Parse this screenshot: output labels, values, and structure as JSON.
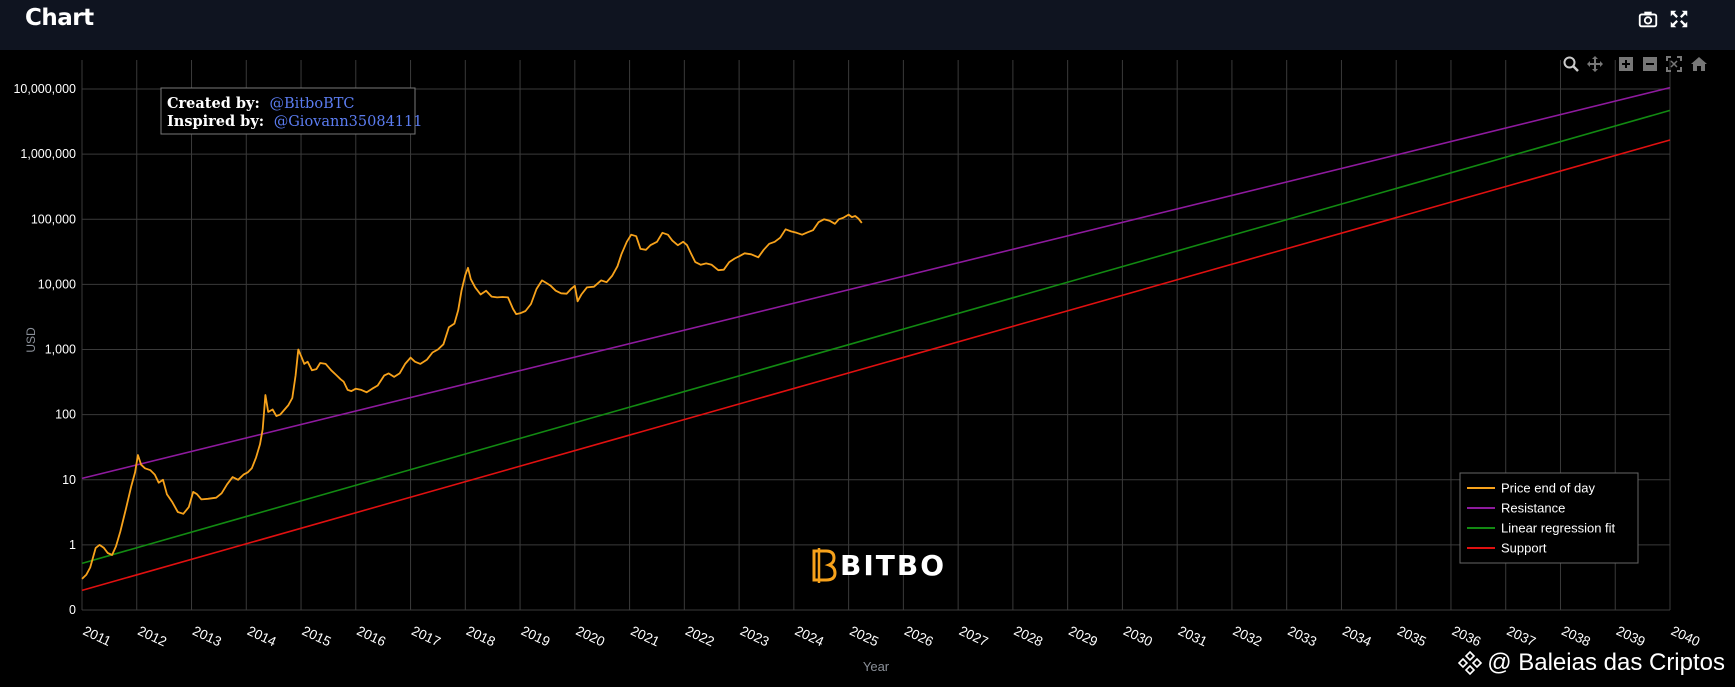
{
  "header": {
    "title": "Chart",
    "camera_icon": "camera-icon",
    "fullscreen_icon": "fullscreen-icon"
  },
  "modebar": [
    "zoom-icon",
    "pan-icon",
    "zoom-in-icon",
    "zoom-out-icon",
    "autoscale-icon",
    "reset-axes-icon"
  ],
  "credits": {
    "created_label": "Created by:",
    "created_value": "@BitboBTC",
    "inspired_label": "Inspired by:",
    "inspired_value": "@Giovann35084111"
  },
  "logo_text": "BITBO",
  "watermark": "@ Baleias das Criptos",
  "colors": {
    "price": "#f7a21b",
    "resistance": "#8e1a9e",
    "regression": "#128a12",
    "support": "#e01010",
    "grid": "#3a3a3a",
    "link": "#5b7cf0"
  },
  "chart_data": {
    "type": "line",
    "xlabel": "Year",
    "ylabel": "USD",
    "yscale": "log",
    "xlim": [
      2011.0,
      2040.0
    ],
    "ylim": [
      0.1,
      10000000
    ],
    "x_ticks": [
      "2011",
      "2012",
      "2013",
      "2014",
      "2015",
      "2016",
      "2017",
      "2018",
      "2019",
      "2020",
      "2021",
      "2022",
      "2023",
      "2024",
      "2025",
      "2026",
      "2027",
      "2028",
      "2029",
      "2030",
      "2031",
      "2032",
      "2033",
      "2034",
      "2035",
      "2036",
      "2037",
      "2038",
      "2039",
      "2040"
    ],
    "y_ticks": [
      {
        "value": 0.1,
        "label": "0"
      },
      {
        "value": 1,
        "label": "1"
      },
      {
        "value": 10,
        "label": "10"
      },
      {
        "value": 100,
        "label": "100"
      },
      {
        "value": 1000,
        "label": "1,000"
      },
      {
        "value": 10000,
        "label": "10,000"
      },
      {
        "value": 100000,
        "label": "100,000"
      },
      {
        "value": 1000000,
        "label": "1,000,000"
      },
      {
        "value": 10000000,
        "label": "10,000,000"
      }
    ],
    "legend_position": "bottom-right",
    "series": [
      {
        "name": "Price end of day",
        "color": "#f7a21b",
        "points": [
          [
            2011.0,
            0.3
          ],
          [
            2011.08,
            0.35
          ],
          [
            2011.15,
            0.45
          ],
          [
            2011.25,
            0.9
          ],
          [
            2011.32,
            1.0
          ],
          [
            2011.4,
            0.9
          ],
          [
            2011.47,
            0.75
          ],
          [
            2011.55,
            0.7
          ],
          [
            2011.62,
            0.95
          ],
          [
            2011.7,
            1.6
          ],
          [
            2011.8,
            3.5
          ],
          [
            2011.9,
            8
          ],
          [
            2011.97,
            13
          ],
          [
            2012.02,
            24
          ],
          [
            2012.08,
            17
          ],
          [
            2012.15,
            15
          ],
          [
            2012.25,
            14
          ],
          [
            2012.33,
            12
          ],
          [
            2012.4,
            9
          ],
          [
            2012.48,
            10
          ],
          [
            2012.55,
            6
          ],
          [
            2012.65,
            4.5
          ],
          [
            2012.75,
            3.2
          ],
          [
            2012.85,
            3.0
          ],
          [
            2012.95,
            3.8
          ],
          [
            2013.03,
            6.5
          ],
          [
            2013.1,
            6.0
          ],
          [
            2013.18,
            5.0
          ],
          [
            2013.3,
            5.1
          ],
          [
            2013.45,
            5.3
          ],
          [
            2013.55,
            6.2
          ],
          [
            2013.65,
            8.5
          ],
          [
            2013.75,
            11
          ],
          [
            2013.85,
            10
          ],
          [
            2013.95,
            12
          ],
          [
            2014.03,
            13
          ],
          [
            2014.1,
            15
          ],
          [
            2014.18,
            22
          ],
          [
            2014.25,
            35
          ],
          [
            2014.3,
            60
          ],
          [
            2014.35,
            200
          ],
          [
            2014.4,
            110
          ],
          [
            2014.48,
            120
          ],
          [
            2014.55,
            95
          ],
          [
            2014.62,
            100
          ],
          [
            2014.7,
            120
          ],
          [
            2014.77,
            140
          ],
          [
            2014.84,
            180
          ],
          [
            2014.9,
            400
          ],
          [
            2014.95,
            1000
          ],
          [
            2015.0,
            800
          ],
          [
            2015.06,
            600
          ],
          [
            2015.12,
            650
          ],
          [
            2015.2,
            480
          ],
          [
            2015.28,
            500
          ],
          [
            2015.35,
            620
          ],
          [
            2015.45,
            600
          ],
          [
            2015.55,
            480
          ],
          [
            2015.65,
            400
          ],
          [
            2015.72,
            350
          ],
          [
            2015.78,
            320
          ],
          [
            2015.85,
            240
          ],
          [
            2015.92,
            230
          ],
          [
            2016.0,
            250
          ],
          [
            2016.1,
            240
          ],
          [
            2016.2,
            220
          ],
          [
            2016.3,
            250
          ],
          [
            2016.4,
            280
          ],
          [
            2016.52,
            400
          ],
          [
            2016.6,
            430
          ],
          [
            2016.7,
            380
          ],
          [
            2016.8,
            430
          ],
          [
            2016.9,
            600
          ],
          [
            2017.0,
            750
          ],
          [
            2017.08,
            650
          ],
          [
            2017.18,
            600
          ],
          [
            2017.3,
            700
          ],
          [
            2017.4,
            900
          ],
          [
            2017.5,
            1000
          ],
          [
            2017.6,
            1200
          ],
          [
            2017.7,
            2200
          ],
          [
            2017.8,
            2500
          ],
          [
            2017.87,
            4000
          ],
          [
            2017.93,
            8000
          ],
          [
            2018.0,
            14000
          ],
          [
            2018.05,
            18000
          ],
          [
            2018.1,
            12000
          ],
          [
            2018.18,
            9000
          ],
          [
            2018.28,
            7000
          ],
          [
            2018.38,
            8000
          ],
          [
            2018.48,
            6500
          ],
          [
            2018.58,
            6300
          ],
          [
            2018.68,
            6400
          ],
          [
            2018.78,
            6300
          ],
          [
            2018.87,
            4200
          ],
          [
            2018.93,
            3500
          ],
          [
            2019.0,
            3600
          ],
          [
            2019.1,
            3900
          ],
          [
            2019.2,
            5000
          ],
          [
            2019.3,
            8500
          ],
          [
            2019.4,
            11500
          ],
          [
            2019.48,
            10500
          ],
          [
            2019.56,
            9500
          ],
          [
            2019.65,
            8000
          ],
          [
            2019.75,
            7300
          ],
          [
            2019.85,
            7200
          ],
          [
            2019.93,
            8500
          ],
          [
            2020.0,
            9500
          ],
          [
            2020.05,
            5500
          ],
          [
            2020.12,
            7000
          ],
          [
            2020.22,
            9000
          ],
          [
            2020.35,
            9200
          ],
          [
            2020.48,
            11500
          ],
          [
            2020.58,
            10800
          ],
          [
            2020.68,
            13500
          ],
          [
            2020.78,
            19000
          ],
          [
            2020.85,
            29000
          ],
          [
            2020.95,
            45000
          ],
          [
            2021.03,
            58000
          ],
          [
            2021.12,
            55000
          ],
          [
            2021.2,
            35000
          ],
          [
            2021.3,
            34000
          ],
          [
            2021.38,
            40000
          ],
          [
            2021.5,
            45000
          ],
          [
            2021.6,
            62000
          ],
          [
            2021.7,
            58000
          ],
          [
            2021.78,
            47000
          ],
          [
            2021.88,
            40000
          ],
          [
            2021.98,
            45000
          ],
          [
            2022.05,
            40000
          ],
          [
            2022.12,
            30000
          ],
          [
            2022.2,
            22000
          ],
          [
            2022.3,
            20000
          ],
          [
            2022.4,
            21000
          ],
          [
            2022.5,
            20000
          ],
          [
            2022.62,
            16500
          ],
          [
            2022.72,
            16800
          ],
          [
            2022.82,
            22000
          ],
          [
            2022.92,
            25000
          ],
          [
            2023.0,
            27000
          ],
          [
            2023.1,
            30000
          ],
          [
            2023.22,
            29000
          ],
          [
            2023.35,
            26000
          ],
          [
            2023.45,
            34000
          ],
          [
            2023.55,
            42000
          ],
          [
            2023.65,
            45000
          ],
          [
            2023.75,
            52000
          ],
          [
            2023.85,
            70000
          ],
          [
            2023.95,
            65000
          ],
          [
            2024.05,
            62000
          ],
          [
            2024.15,
            58000
          ],
          [
            2024.25,
            63000
          ],
          [
            2024.35,
            68000
          ],
          [
            2024.45,
            90000
          ],
          [
            2024.55,
            100000
          ],
          [
            2024.65,
            95000
          ],
          [
            2024.75,
            85000
          ],
          [
            2024.82,
            100000
          ],
          [
            2024.9,
            105000
          ],
          [
            2025.0,
            118000
          ],
          [
            2025.06,
            108000
          ],
          [
            2025.12,
            112000
          ],
          [
            2025.18,
            102000
          ],
          [
            2025.24,
            88000
          ]
        ]
      },
      {
        "name": "Resistance",
        "color": "#8e1a9e",
        "line": {
          "x0": 2011.0,
          "y0": 10.5,
          "x1": 2040.0,
          "y1": 10500000
        }
      },
      {
        "name": "Linear regression fit",
        "color": "#128a12",
        "line": {
          "x0": 2011.0,
          "y0": 0.52,
          "x1": 2040.0,
          "y1": 4700000
        }
      },
      {
        "name": "Support",
        "color": "#e01010",
        "line": {
          "x0": 2011.0,
          "y0": 0.2,
          "x1": 2040.0,
          "y1": 1650000
        }
      }
    ]
  }
}
